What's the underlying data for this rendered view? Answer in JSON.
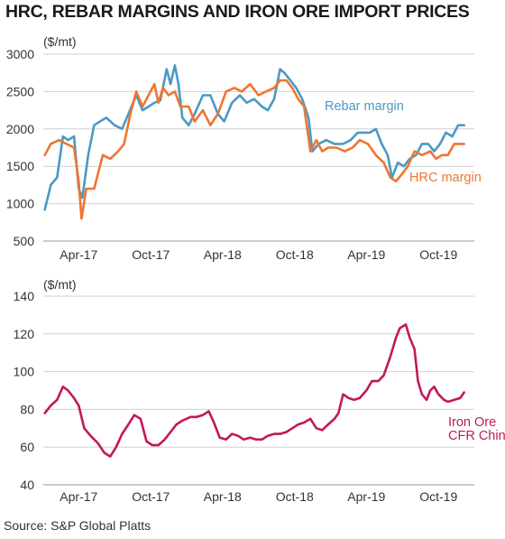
{
  "title": "HRC, REBAR MARGINS AND IRON ORE IMPORT PRICES",
  "source": "Source: S&P Global Platts",
  "chart_data": [
    {
      "type": "line",
      "unit_label": "($/mt)",
      "ylim": [
        500,
        3000
      ],
      "yticks": [
        500,
        1000,
        1500,
        2000,
        2500,
        3000
      ],
      "xlim": [
        "2017-01-01",
        "2019-12-31"
      ],
      "xticks": [
        {
          "label": "Apr-17",
          "date": "2017-04-01"
        },
        {
          "label": "Oct-17",
          "date": "2017-10-01"
        },
        {
          "label": "Apr-18",
          "date": "2018-04-01"
        },
        {
          "label": "Oct-18",
          "date": "2018-10-01"
        },
        {
          "label": "Apr-19",
          "date": "2019-04-01"
        },
        {
          "label": "Oct-19",
          "date": "2019-10-01"
        }
      ],
      "grid": "horizontal",
      "series": [
        {
          "name": "Rebar margin",
          "color": "#4a9ac4",
          "points": [
            [
              "2017-01-05",
              920
            ],
            [
              "2017-01-20",
              1250
            ],
            [
              "2017-02-05",
              1350
            ],
            [
              "2017-02-20",
              1900
            ],
            [
              "2017-03-05",
              1850
            ],
            [
              "2017-03-20",
              1900
            ],
            [
              "2017-04-01",
              1200
            ],
            [
              "2017-04-10",
              1080
            ],
            [
              "2017-04-25",
              1650
            ],
            [
              "2017-05-10",
              2050
            ],
            [
              "2017-05-25",
              2100
            ],
            [
              "2017-06-10",
              2150
            ],
            [
              "2017-07-01",
              2050
            ],
            [
              "2017-07-20",
              2000
            ],
            [
              "2017-08-05",
              2200
            ],
            [
              "2017-08-25",
              2450
            ],
            [
              "2017-09-10",
              2250
            ],
            [
              "2017-09-25",
              2300
            ],
            [
              "2017-10-10",
              2350
            ],
            [
              "2017-10-25",
              2380
            ],
            [
              "2017-11-10",
              2800
            ],
            [
              "2017-11-20",
              2600
            ],
            [
              "2017-12-01",
              2850
            ],
            [
              "2017-12-10",
              2600
            ],
            [
              "2017-12-20",
              2150
            ],
            [
              "2018-01-05",
              2050
            ],
            [
              "2018-01-20",
              2200
            ],
            [
              "2018-02-10",
              2450
            ],
            [
              "2018-03-01",
              2450
            ],
            [
              "2018-03-20",
              2200
            ],
            [
              "2018-04-05",
              2100
            ],
            [
              "2018-04-25",
              2350
            ],
            [
              "2018-05-15",
              2450
            ],
            [
              "2018-06-01",
              2350
            ],
            [
              "2018-06-20",
              2400
            ],
            [
              "2018-07-10",
              2300
            ],
            [
              "2018-07-25",
              2250
            ],
            [
              "2018-08-10",
              2400
            ],
            [
              "2018-08-25",
              2800
            ],
            [
              "2018-09-05",
              2750
            ],
            [
              "2018-09-20",
              2650
            ],
            [
              "2018-10-05",
              2550
            ],
            [
              "2018-10-20",
              2400
            ],
            [
              "2018-11-05",
              2150
            ],
            [
              "2018-11-15",
              1700
            ],
            [
              "2018-12-01",
              1800
            ],
            [
              "2018-12-20",
              1850
            ],
            [
              "2019-01-10",
              1800
            ],
            [
              "2019-02-01",
              1800
            ],
            [
              "2019-02-20",
              1850
            ],
            [
              "2019-03-10",
              1950
            ],
            [
              "2019-03-25",
              1950
            ],
            [
              "2019-04-10",
              1950
            ],
            [
              "2019-04-25",
              2000
            ],
            [
              "2019-05-10",
              1800
            ],
            [
              "2019-05-25",
              1650
            ],
            [
              "2019-06-05",
              1350
            ],
            [
              "2019-06-20",
              1550
            ],
            [
              "2019-07-05",
              1500
            ],
            [
              "2019-07-20",
              1600
            ],
            [
              "2019-08-05",
              1650
            ],
            [
              "2019-08-20",
              1800
            ],
            [
              "2019-09-05",
              1800
            ],
            [
              "2019-09-20",
              1700
            ],
            [
              "2019-10-05",
              1800
            ],
            [
              "2019-10-20",
              1950
            ],
            [
              "2019-11-05",
              1900
            ],
            [
              "2019-11-20",
              2050
            ],
            [
              "2019-12-05",
              2050
            ]
          ]
        },
        {
          "name": "HRC margin",
          "color": "#ee7533",
          "points": [
            [
              "2017-01-05",
              1650
            ],
            [
              "2017-01-20",
              1800
            ],
            [
              "2017-02-10",
              1850
            ],
            [
              "2017-03-01",
              1800
            ],
            [
              "2017-03-20",
              1750
            ],
            [
              "2017-04-01",
              1300
            ],
            [
              "2017-04-08",
              800
            ],
            [
              "2017-04-20",
              1200
            ],
            [
              "2017-05-10",
              1200
            ],
            [
              "2017-06-01",
              1650
            ],
            [
              "2017-06-20",
              1600
            ],
            [
              "2017-07-10",
              1700
            ],
            [
              "2017-07-25",
              1800
            ],
            [
              "2017-08-10",
              2200
            ],
            [
              "2017-08-25",
              2500
            ],
            [
              "2017-09-10",
              2300
            ],
            [
              "2017-09-25",
              2450
            ],
            [
              "2017-10-10",
              2600
            ],
            [
              "2017-10-20",
              2350
            ],
            [
              "2017-11-01",
              2550
            ],
            [
              "2017-11-15",
              2450
            ],
            [
              "2017-12-01",
              2500
            ],
            [
              "2017-12-15",
              2300
            ],
            [
              "2018-01-05",
              2300
            ],
            [
              "2018-01-20",
              2100
            ],
            [
              "2018-02-10",
              2250
            ],
            [
              "2018-03-01",
              2050
            ],
            [
              "2018-03-20",
              2200
            ],
            [
              "2018-04-10",
              2500
            ],
            [
              "2018-05-01",
              2550
            ],
            [
              "2018-05-20",
              2500
            ],
            [
              "2018-06-10",
              2600
            ],
            [
              "2018-07-01",
              2450
            ],
            [
              "2018-07-20",
              2500
            ],
            [
              "2018-08-10",
              2550
            ],
            [
              "2018-08-25",
              2650
            ],
            [
              "2018-09-10",
              2650
            ],
            [
              "2018-09-25",
              2550
            ],
            [
              "2018-10-10",
              2400
            ],
            [
              "2018-10-25",
              2300
            ],
            [
              "2018-11-10",
              1700
            ],
            [
              "2018-11-25",
              1850
            ],
            [
              "2018-12-10",
              1700
            ],
            [
              "2018-12-25",
              1750
            ],
            [
              "2019-01-15",
              1750
            ],
            [
              "2019-02-05",
              1700
            ],
            [
              "2019-02-25",
              1750
            ],
            [
              "2019-03-15",
              1850
            ],
            [
              "2019-04-05",
              1800
            ],
            [
              "2019-04-25",
              1650
            ],
            [
              "2019-05-15",
              1550
            ],
            [
              "2019-06-01",
              1350
            ],
            [
              "2019-06-15",
              1300
            ],
            [
              "2019-07-01",
              1400
            ],
            [
              "2019-07-15",
              1500
            ],
            [
              "2019-08-01",
              1700
            ],
            [
              "2019-08-20",
              1650
            ],
            [
              "2019-09-10",
              1700
            ],
            [
              "2019-09-25",
              1600
            ],
            [
              "2019-10-10",
              1650
            ],
            [
              "2019-10-25",
              1650
            ],
            [
              "2019-11-10",
              1800
            ],
            [
              "2019-11-25",
              1800
            ],
            [
              "2019-12-05",
              1800
            ]
          ]
        }
      ]
    },
    {
      "type": "line",
      "unit_label": "($/mt)",
      "ylim": [
        40,
        140
      ],
      "yticks": [
        40,
        60,
        80,
        100,
        120,
        140
      ],
      "xlim": [
        "2017-01-01",
        "2019-12-31"
      ],
      "xticks": [
        {
          "label": "Apr-17",
          "date": "2017-04-01"
        },
        {
          "label": "Oct-17",
          "date": "2017-10-01"
        },
        {
          "label": "Apr-18",
          "date": "2018-04-01"
        },
        {
          "label": "Oct-18",
          "date": "2018-10-01"
        },
        {
          "label": "Apr-19",
          "date": "2019-04-01"
        },
        {
          "label": "Oct-19",
          "date": "2019-10-01"
        }
      ],
      "grid": "horizontal",
      "series": [
        {
          "name": "Iron Ore CFR China",
          "label_lines": [
            "Iron Ore",
            "CFR China"
          ],
          "color": "#c2185b",
          "points": [
            [
              "2017-01-05",
              78
            ],
            [
              "2017-01-20",
              82
            ],
            [
              "2017-02-05",
              85
            ],
            [
              "2017-02-20",
              92
            ],
            [
              "2017-03-05",
              90
            ],
            [
              "2017-03-20",
              86
            ],
            [
              "2017-04-01",
              82
            ],
            [
              "2017-04-15",
              70
            ],
            [
              "2017-05-01",
              66
            ],
            [
              "2017-05-20",
              62
            ],
            [
              "2017-06-05",
              57
            ],
            [
              "2017-06-20",
              55
            ],
            [
              "2017-07-05",
              60
            ],
            [
              "2017-07-20",
              67
            ],
            [
              "2017-08-05",
              72
            ],
            [
              "2017-08-20",
              77
            ],
            [
              "2017-09-05",
              75
            ],
            [
              "2017-09-20",
              63
            ],
            [
              "2017-10-05",
              61
            ],
            [
              "2017-10-20",
              61
            ],
            [
              "2017-11-05",
              64
            ],
            [
              "2017-11-20",
              68
            ],
            [
              "2017-12-05",
              72
            ],
            [
              "2017-12-20",
              74
            ],
            [
              "2018-01-10",
              76
            ],
            [
              "2018-01-25",
              76
            ],
            [
              "2018-02-10",
              77
            ],
            [
              "2018-02-25",
              79
            ],
            [
              "2018-03-10",
              73
            ],
            [
              "2018-03-25",
              65
            ],
            [
              "2018-04-10",
              64
            ],
            [
              "2018-04-25",
              67
            ],
            [
              "2018-05-10",
              66
            ],
            [
              "2018-05-25",
              64
            ],
            [
              "2018-06-10",
              65
            ],
            [
              "2018-06-25",
              64
            ],
            [
              "2018-07-10",
              64
            ],
            [
              "2018-07-25",
              66
            ],
            [
              "2018-08-10",
              67
            ],
            [
              "2018-08-25",
              67
            ],
            [
              "2018-09-10",
              68
            ],
            [
              "2018-09-25",
              70
            ],
            [
              "2018-10-10",
              72
            ],
            [
              "2018-10-25",
              73
            ],
            [
              "2018-11-10",
              75
            ],
            [
              "2018-11-25",
              70
            ],
            [
              "2018-12-10",
              69
            ],
            [
              "2018-12-25",
              72
            ],
            [
              "2019-01-10",
              75
            ],
            [
              "2019-01-20",
              78
            ],
            [
              "2019-02-01",
              88
            ],
            [
              "2019-02-15",
              86
            ],
            [
              "2019-03-01",
              85
            ],
            [
              "2019-03-15",
              86
            ],
            [
              "2019-04-01",
              90
            ],
            [
              "2019-04-15",
              95
            ],
            [
              "2019-05-01",
              95
            ],
            [
              "2019-05-15",
              98
            ],
            [
              "2019-06-01",
              108
            ],
            [
              "2019-06-15",
              118
            ],
            [
              "2019-06-25",
              123
            ],
            [
              "2019-07-10",
              125
            ],
            [
              "2019-07-20",
              118
            ],
            [
              "2019-08-01",
              112
            ],
            [
              "2019-08-10",
              95
            ],
            [
              "2019-08-20",
              88
            ],
            [
              "2019-09-01",
              85
            ],
            [
              "2019-09-10",
              90
            ],
            [
              "2019-09-20",
              92
            ],
            [
              "2019-10-01",
              88
            ],
            [
              "2019-10-15",
              85
            ],
            [
              "2019-10-25",
              84
            ],
            [
              "2019-11-10",
              85
            ],
            [
              "2019-11-25",
              86
            ],
            [
              "2019-12-05",
              89
            ]
          ]
        }
      ]
    }
  ]
}
